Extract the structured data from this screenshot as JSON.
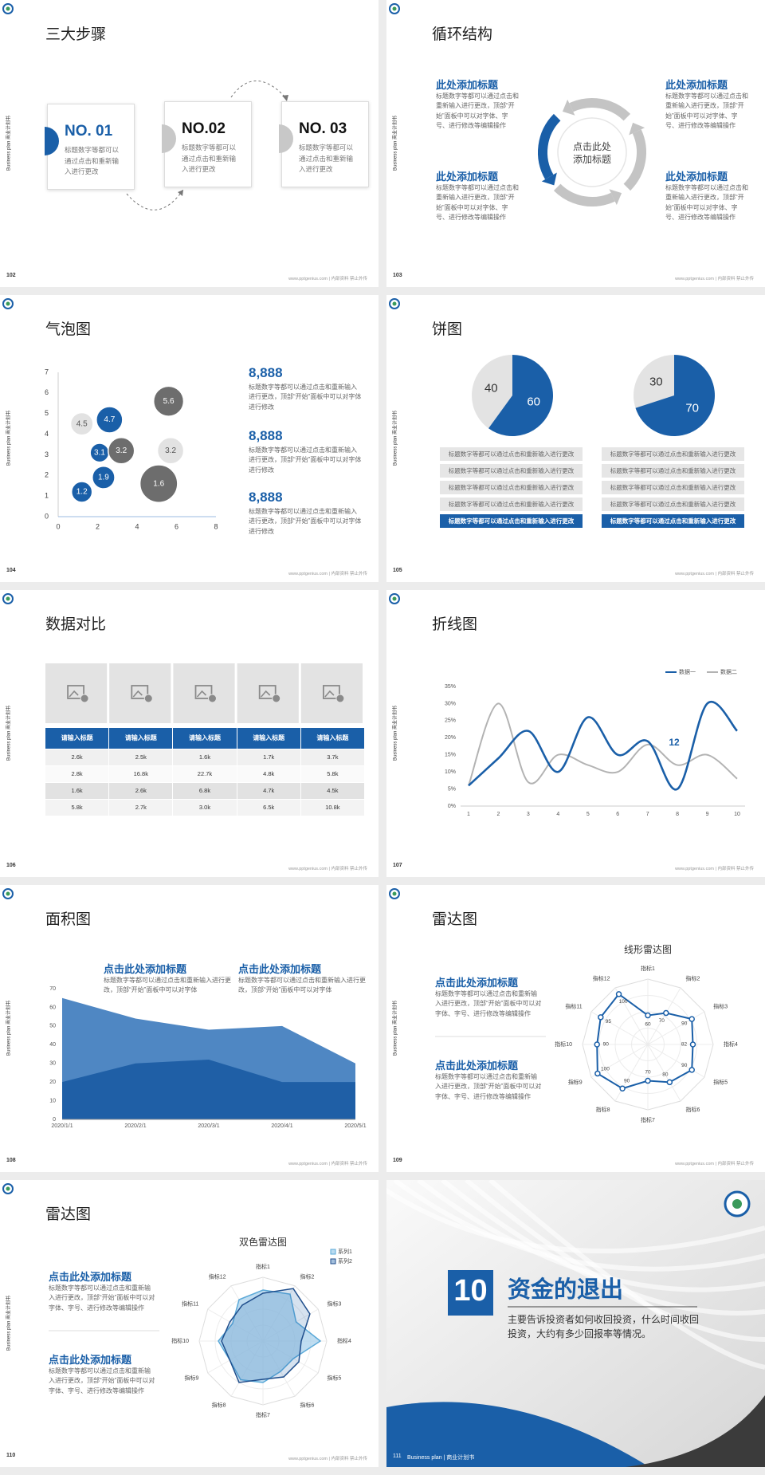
{
  "side_label": "Business plan 商业计划书",
  "footer": "www.pptgenius.com | 内部资料 禁止外传",
  "slides": [
    {
      "number": "102",
      "title": "三大步骤",
      "steps": [
        {
          "label": "NO. 01",
          "text": "标题数字等都可以通过点击和重新输入进行更改"
        },
        {
          "label": "NO.02",
          "text": "标题数字等都可以通过点击和重新输入进行更改"
        },
        {
          "label": "NO. 03",
          "text": "标题数字等都可以通过点击和重新输入进行更改"
        }
      ]
    },
    {
      "number": "103",
      "title": "循环结构",
      "center": [
        "点击此处",
        "添加标题"
      ],
      "blocks": [
        {
          "heading": "此处添加标题",
          "text": "标题数字等都可以通过点击和重新输入进行更改，顶部“开始”面板中可以对字体、字号、进行修改等编辑操作"
        },
        {
          "heading": "此处添加标题",
          "text": "标题数字等都可以通过点击和重新输入进行更改，顶部“开始”面板中可以对字体、字号、进行修改等编辑操作"
        },
        {
          "heading": "此处添加标题",
          "text": "标题数字等都可以通过点击和重新输入进行更改，顶部“开始”面板中可以对字体、字号、进行修改等编辑操作"
        },
        {
          "heading": "此处添加标题",
          "text": "标题数字等都可以通过点击和重新输入进行更改，顶部“开始”面板中可以对字体、字号、进行修改等编辑操作"
        }
      ]
    },
    {
      "number": "104",
      "title": "气泡图",
      "chart_data": {
        "type": "bubble",
        "xlim": [
          0,
          8
        ],
        "xticks": [
          0,
          2,
          4,
          6,
          8
        ],
        "ylim": [
          0,
          7
        ],
        "yticks": [
          0,
          1,
          2,
          3,
          4,
          5,
          6,
          7
        ],
        "series": [
          {
            "color": "#1a5fa8",
            "x": [
              1.2,
              2.3,
              2.1,
              2.6
            ],
            "values": [
              1.2,
              1.9,
              3.1,
              4.7
            ],
            "sizes": [
              11,
              12,
              10,
              14
            ]
          },
          {
            "color": "#6d6d6d",
            "x": [
              3.2,
              5.6,
              5.1
            ],
            "values": [
              3.2,
              5.6,
              1.6
            ],
            "sizes": [
              14,
              16,
              20
            ]
          },
          {
            "color": "#e2e2e2",
            "x": [
              1.2,
              5.7
            ],
            "values": [
              4.5,
              3.2
            ],
            "sizes": [
              12,
              14
            ]
          }
        ]
      },
      "stats": [
        {
          "value": "8,888",
          "text": "标题数字等都可以通过点击和重新输入进行更改，顶部“开始”面板中可以对字体进行修改"
        },
        {
          "value": "8,888",
          "text": "标题数字等都可以通过点击和重新输入进行更改，顶部“开始”面板中可以对字体进行修改"
        },
        {
          "value": "8,888",
          "text": "标题数字等都可以通过点击和重新输入进行更改，顶部“开始”面板中可以对字体进行修改"
        }
      ]
    },
    {
      "number": "105",
      "title": "饼图",
      "chart_data": [
        {
          "type": "pie",
          "values": [
            40,
            60
          ],
          "colors": [
            "#e3e3e3",
            "#1a5fa8"
          ]
        },
        {
          "type": "pie",
          "values": [
            30,
            70
          ],
          "colors": [
            "#e3e3e3",
            "#1a5fa8"
          ]
        }
      ],
      "captions": [
        [
          "标题数字等都可以通过点击和重新输入进行更改",
          "标题数字等都可以通过点击和重新输入进行更改",
          "标题数字等都可以通过点击和重新输入进行更改",
          "标题数字等都可以通过点击和重新输入进行更改",
          "标题数字等都可以通过点击和重新输入进行更改"
        ],
        [
          "标题数字等都可以通过点击和重新输入进行更改",
          "标题数字等都可以通过点击和重新输入进行更改",
          "标题数字等都可以通过点击和重新输入进行更改",
          "标题数字等都可以通过点击和重新输入进行更改",
          "标题数字等都可以通过点击和重新输入进行更改"
        ]
      ]
    },
    {
      "number": "106",
      "title": "数据对比",
      "table": {
        "header": [
          "请输入标题",
          "请输入标题",
          "请输入标题",
          "请输入标题",
          "请输入标题"
        ],
        "rows": [
          [
            "2.6k",
            "2.5k",
            "1.6k",
            "1.7k",
            "3.7k"
          ],
          [
            "2.8k",
            "16.8k",
            "22.7k",
            "4.8k",
            "5.8k"
          ],
          [
            "1.6k",
            "2.6k",
            "6.8k",
            "4.7k",
            "4.5k"
          ],
          [
            "5.8k",
            "2.7k",
            "3.0k",
            "6.5k",
            "10.8k"
          ]
        ]
      }
    },
    {
      "number": "107",
      "title": "折线图",
      "chart_data": {
        "type": "line",
        "x": [
          1,
          2,
          3,
          4,
          5,
          6,
          7,
          8,
          9,
          10
        ],
        "xlim": [
          1,
          10
        ],
        "xticks": [
          1,
          2,
          3,
          4,
          5,
          6,
          7,
          8,
          9,
          10
        ],
        "ylim": [
          0,
          35
        ],
        "yticks": [
          {
            "value": 0,
            "label": "0%"
          },
          {
            "value": 5,
            "label": "5%"
          },
          {
            "value": 10,
            "label": "10%"
          },
          {
            "value": 15,
            "label": "15%"
          },
          {
            "value": 20,
            "label": "20%"
          },
          {
            "value": 25,
            "label": "25%"
          },
          {
            "value": 30,
            "label": "30%"
          },
          {
            "value": 35,
            "label": "35%"
          }
        ],
        "series": [
          {
            "name": "数据一",
            "color": "#1a5fa8",
            "values": [
              6,
              14,
              22,
              10,
              26,
              15,
              19,
              5,
              30,
              22
            ]
          },
          {
            "name": "数据二",
            "color": "#b3b3b3",
            "values": [
              6,
              30,
              7,
              15,
              12,
              10,
              18,
              12,
              15,
              8
            ]
          }
        ],
        "annotation": "12",
        "legend": "top-right"
      }
    },
    {
      "number": "108",
      "title": "面积图",
      "blocks": [
        {
          "heading": "点击此处添加标题",
          "text": "标题数字等都可以通过点击和重新输入进行更改，顶部“开始”面板中可以对字体"
        },
        {
          "heading": "点击此处添加标题",
          "text": "标题数字等都可以通过点击和重新输入进行更改，顶部“开始”面板中可以对字体"
        }
      ],
      "chart_data": {
        "type": "area",
        "categories": [
          "2020/1/1",
          "2020/2/1",
          "2020/3/1",
          "2020/4/1",
          "2020/5/1"
        ],
        "ylim": [
          0,
          70
        ],
        "yticks": [
          0,
          10,
          20,
          30,
          40,
          50,
          60,
          70
        ],
        "series": [
          {
            "color": "#4f87c3",
            "values": [
              65,
              54,
              48,
              50,
              30
            ]
          },
          {
            "color": "#1f5fa6",
            "values": [
              20,
              30,
              32,
              20,
              20
            ]
          }
        ]
      }
    },
    {
      "number": "109",
      "title": "雷达图",
      "blocks": [
        {
          "heading": "点击此处添加标题",
          "text": "标题数字等都可以通过点击和重新输入进行更改，顶部“开始”面板中可以对字体、字号、进行修改等编辑操作"
        },
        {
          "heading": "点击此处添加标题",
          "text": "标题数字等都可以通过点击和重新输入进行更改，顶部“开始”面板中可以对字体、字号、进行修改等编辑操作"
        }
      ],
      "chart_data": {
        "type": "radar",
        "title": "线形雷达图",
        "rlim": [
          20,
          110
        ],
        "show_values": true,
        "categories": [
          "指标1",
          "指标2",
          "指标3",
          "指标4",
          "指标5",
          "指标6",
          "指标7",
          "指标8",
          "指标9",
          "指标10",
          "指标11",
          "指标12"
        ],
        "series": [
          {
            "color": "#1a5fa8",
            "values": [
              60,
              70,
              90,
              82,
              90,
              80,
              70,
              90,
              100,
              90,
              95,
              100
            ]
          }
        ]
      }
    },
    {
      "number": "110",
      "title": "雷达图",
      "blocks": [
        {
          "heading": "点击此处添加标题",
          "text": "标题数字等都可以通过点击和重新输入进行更改，顶部“开始”面板中可以对字体、字号、进行修改等编辑操作"
        },
        {
          "heading": "点击此处添加标题",
          "text": "标题数字等都可以通过点击和重新输入进行更改，顶部“开始”面板中可以对字体、字号、进行修改等编辑操作"
        }
      ],
      "chart_data": {
        "type": "radar",
        "title": "双色雷达图",
        "rlim": [
          0,
          100
        ],
        "show_values": false,
        "legend": "top-right",
        "categories": [
          "指标1",
          "指标2",
          "指标3",
          "指标4",
          "指标5",
          "指标6",
          "指标7",
          "指标8",
          "指标9",
          "指标10",
          "指标11",
          "指标12"
        ],
        "series": [
          {
            "name": "系列1",
            "color": "#5aa9d8",
            "fill": "#a9d2ec",
            "values": [
              80,
              85,
              60,
              90,
              55,
              55,
              65,
              70,
              60,
              70,
              55,
              75
            ]
          },
          {
            "name": "系列2",
            "color": "#1f4e8c",
            "fill": "#1a5fa8",
            "values": [
              75,
              95,
              85,
              60,
              65,
              65,
              60,
              75,
              60,
              65,
              60,
              65
            ]
          }
        ]
      }
    },
    {
      "number": "111",
      "chapter": "10",
      "title": "资金的退出",
      "text": "主要告诉投资者如何收回投资，什么时间收回投资，大约有多少回报率等情况。",
      "footer": "Business plan | 商业计划书"
    }
  ]
}
